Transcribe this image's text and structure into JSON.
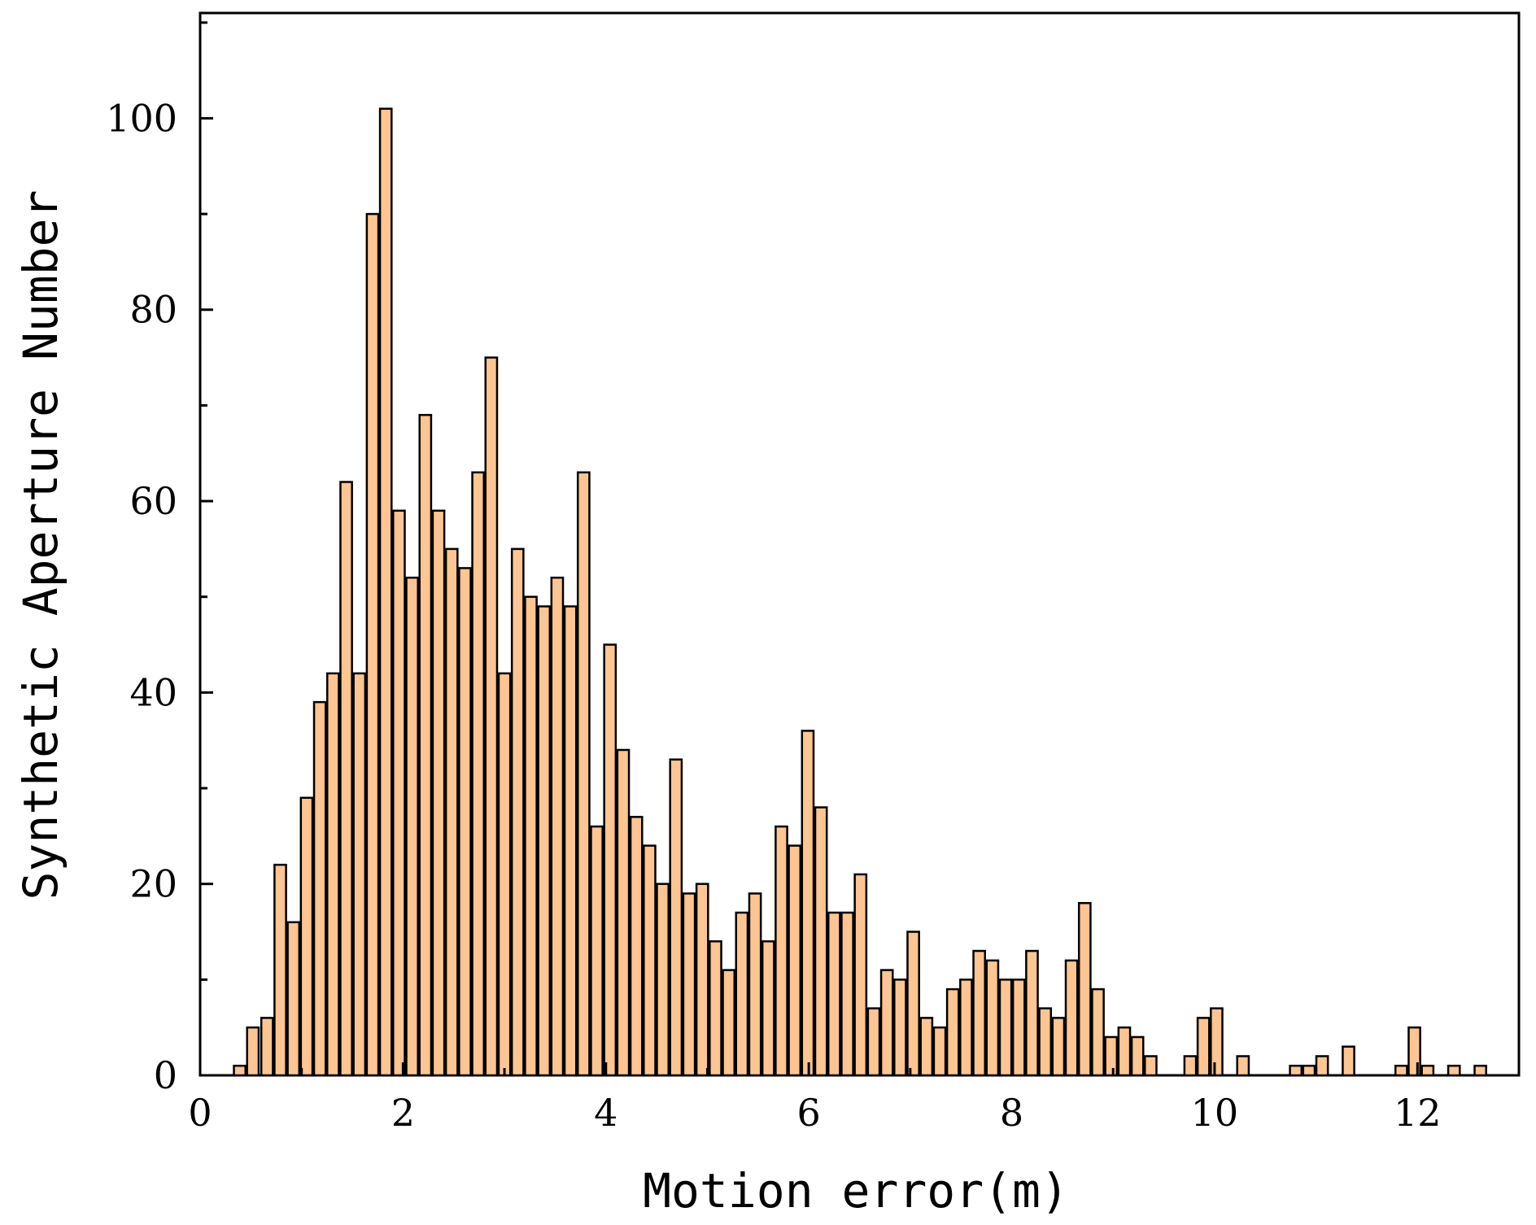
{
  "chart_data": {
    "type": "bar",
    "title": "",
    "xlabel": "Motion error(m)",
    "ylabel": "Synthetic Aperture Number",
    "xlim": [
      0,
      13
    ],
    "ylim": [
      0,
      111
    ],
    "x_ticks": [
      0,
      2,
      4,
      6,
      8,
      10,
      12
    ],
    "y_ticks": [
      0,
      20,
      40,
      60,
      80,
      100
    ],
    "bar_color": "#fdc591",
    "bar_edge_color": "#000000",
    "bin_width": 0.13,
    "grid": false,
    "series": [
      {
        "x": [
          0.39,
          0.52,
          0.66,
          0.79,
          0.92,
          1.05,
          1.18,
          1.31,
          1.44,
          1.57,
          1.7,
          1.83,
          1.96,
          2.09,
          2.22,
          2.35,
          2.48,
          2.61,
          2.74,
          2.87,
          3.0,
          3.13,
          3.26,
          3.39,
          3.52,
          3.65,
          3.78,
          3.91,
          4.04,
          4.17,
          4.3,
          4.43,
          4.56,
          4.69,
          4.82,
          4.95,
          5.08,
          5.21,
          5.34,
          5.47,
          5.6,
          5.73,
          5.86,
          5.99,
          6.12,
          6.25,
          6.38,
          6.51,
          6.64,
          6.77,
          6.9,
          7.03,
          7.16,
          7.29,
          7.42,
          7.55,
          7.68,
          7.81,
          7.94,
          8.07,
          8.2,
          8.33,
          8.46,
          8.59,
          8.72,
          8.85,
          8.98,
          9.11,
          9.24,
          9.37,
          9.76,
          9.89,
          10.02,
          10.28,
          10.8,
          10.93,
          11.06,
          11.32,
          11.84,
          11.97,
          12.1,
          12.36,
          12.62
        ],
        "values": [
          1,
          5,
          6,
          22,
          16,
          29,
          39,
          42,
          62,
          42,
          90,
          101,
          59,
          52,
          69,
          59,
          55,
          53,
          63,
          75,
          42,
          55,
          50,
          49,
          52,
          49,
          63,
          26,
          45,
          34,
          27,
          24,
          20,
          33,
          19,
          20,
          14,
          11,
          17,
          19,
          14,
          26,
          24,
          36,
          28,
          17,
          17,
          21,
          7,
          11,
          10,
          15,
          6,
          5,
          9,
          10,
          13,
          12,
          10,
          10,
          13,
          7,
          6,
          12,
          18,
          9,
          4,
          5,
          4,
          2,
          2,
          6,
          7,
          2,
          1,
          1,
          2,
          3,
          1,
          5,
          1,
          1,
          1
        ]
      }
    ]
  }
}
